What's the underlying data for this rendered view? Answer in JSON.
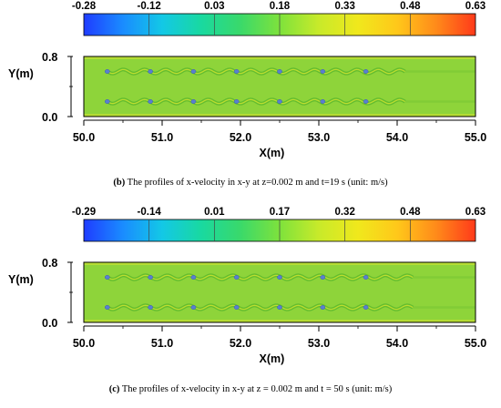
{
  "colors": {
    "colormap": [
      "#1f3cff",
      "#1a8cff",
      "#13c8e6",
      "#19d9a0",
      "#3ad96a",
      "#7ee23c",
      "#c8ea2a",
      "#f0e81c",
      "#ffc81a",
      "#ff8a1a",
      "#ff3a1a"
    ],
    "field": "#8ed43a",
    "wake_dark": "#5cb82e",
    "wake_light": "#c4e030",
    "cylinder": "#5a7fd0"
  },
  "panels": [
    {
      "id": "b",
      "caption": {
        "letter": "(b)",
        "text": "The profiles of x-velocity in x-y at z=0.002 m and t=19 s (unit: m/s)"
      },
      "colorbar": {
        "ticks": [
          "-0.28",
          "-0.12",
          "0.03",
          "0.18",
          "0.33",
          "0.48",
          "0.63"
        ],
        "min": -0.28,
        "max": 0.63
      },
      "chart_data": {
        "type": "heatmap",
        "quantity": "x-velocity",
        "unit": "m/s",
        "xlabel": "X(m)",
        "ylabel": "Y(m)",
        "xlim": [
          50.0,
          55.0
        ],
        "ylim": [
          0.0,
          0.8
        ],
        "xticks": [
          "50.0",
          "51.0",
          "52.0",
          "53.0",
          "54.0",
          "55.0"
        ],
        "yticks": [
          "0.8",
          "0.0"
        ],
        "cylinder_rows_y": [
          0.6,
          0.2
        ],
        "cylinder_x": [
          50.3,
          50.85,
          51.4,
          51.95,
          52.5,
          53.05,
          53.6
        ],
        "wake_end_x": 54.1
      }
    },
    {
      "id": "c",
      "caption": {
        "letter": "(c)",
        "text": "The profiles of x-velocity in x-y at z = 0.002 m and t = 50 s (unit: m/s)"
      },
      "colorbar": {
        "ticks": [
          "-0.29",
          "-0.14",
          "0.01",
          "0.17",
          "0.32",
          "0.48",
          "0.63"
        ],
        "min": -0.29,
        "max": 0.63
      },
      "chart_data": {
        "type": "heatmap",
        "quantity": "x-velocity",
        "unit": "m/s",
        "xlabel": "X(m)",
        "ylabel": "Y(m)",
        "xlim": [
          50.0,
          55.0
        ],
        "ylim": [
          0.0,
          0.8
        ],
        "xticks": [
          "50.0",
          "51.0",
          "52.0",
          "53.0",
          "54.0",
          "55.0"
        ],
        "yticks": [
          "0.8",
          "0.0"
        ],
        "cylinder_rows_y": [
          0.6,
          0.2
        ],
        "cylinder_x": [
          50.3,
          50.85,
          51.4,
          51.95,
          52.5,
          53.05,
          53.6
        ],
        "wake_end_x": 54.2
      }
    }
  ]
}
